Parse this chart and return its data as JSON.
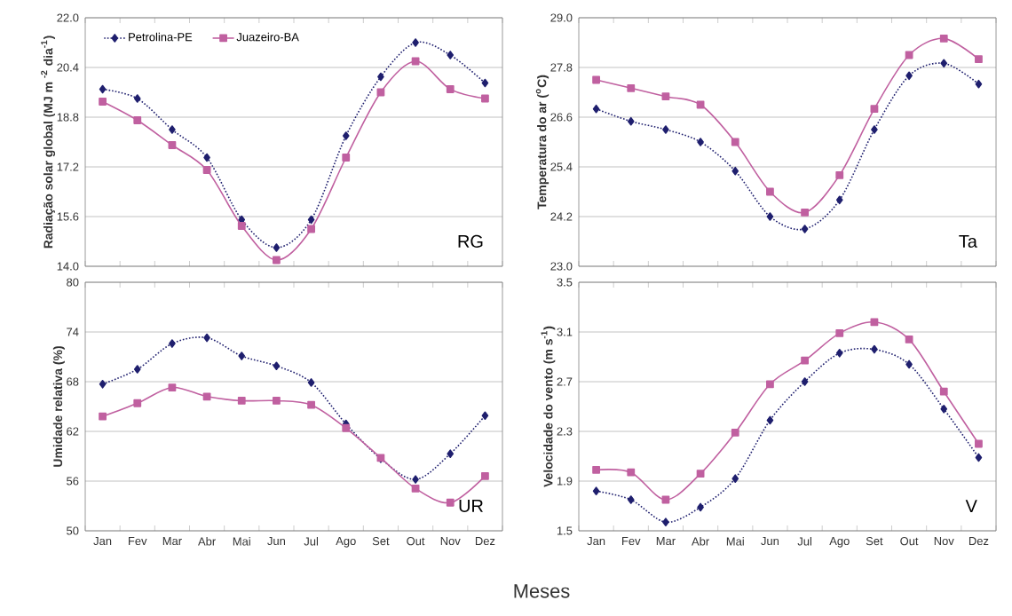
{
  "chart_data": [
    {
      "type": "line",
      "ylabel": "Radiação solar global (MJ m $^{-2}$ dia$^{-1}$)",
      "categories": [
        null,
        null,
        null,
        null,
        null,
        null,
        null,
        null,
        null,
        null,
        null,
        null
      ],
      "ylim": [
        14.0,
        22.0
      ],
      "yticks": [
        {
          "value": 14.0,
          "label": "14.0"
        },
        {
          "value": 15.6,
          "label": "15.6"
        },
        {
          "value": 17.2,
          "label": "17.2"
        },
        {
          "value": 18.8,
          "label": "18.8"
        },
        {
          "value": 20.4,
          "label": "20.4"
        },
        {
          "value": 22.0,
          "label": "22.0"
        }
      ],
      "grid": "y",
      "legend": "top left",
      "annotations": [
        "RG"
      ],
      "series": [
        {
          "name": "Petrolina-PE",
          "color": "#1f1f6e",
          "marker": "diamond",
          "line_style": "dotted",
          "values": [
            19.7,
            19.4,
            18.4,
            17.5,
            15.5,
            14.6,
            15.5,
            18.2,
            20.1,
            21.2,
            20.8,
            19.9
          ]
        },
        {
          "name": "Juazeiro-BA",
          "color": "#c060a0",
          "marker": "square",
          "line_style": "solid",
          "values": [
            19.3,
            18.7,
            17.9,
            17.1,
            15.3,
            14.2,
            15.2,
            17.5,
            19.6,
            20.6,
            19.7,
            19.4
          ]
        }
      ]
    },
    {
      "type": "line",
      "ylabel": "Temperatura do ar ($^{o}$C)",
      "categories": [
        null,
        null,
        null,
        null,
        null,
        null,
        null,
        null,
        null,
        null,
        null,
        null
      ],
      "ylim": [
        23.0,
        29.0
      ],
      "yticks": [
        {
          "value": 23.0,
          "label": "23.0"
        },
        {
          "value": 24.2,
          "label": "24.2"
        },
        {
          "value": 25.4,
          "label": "25.4"
        },
        {
          "value": 26.6,
          "label": "26.6"
        },
        {
          "value": 27.8,
          "label": "27.8"
        },
        {
          "value": 29.0,
          "label": "29.0"
        }
      ],
      "grid": "y",
      "annotations": [
        "Ta"
      ],
      "series": [
        {
          "color": "#1f1f6e",
          "marker": "diamond",
          "line_style": "dotted",
          "values": [
            26.8,
            26.5,
            26.3,
            26.0,
            25.3,
            24.2,
            23.9,
            24.6,
            26.3,
            27.6,
            27.9,
            27.4
          ]
        },
        {
          "color": "#c060a0",
          "marker": "square",
          "line_style": "solid",
          "values": [
            27.5,
            27.3,
            27.1,
            26.9,
            26.0,
            24.8,
            24.3,
            25.2,
            26.8,
            28.1,
            28.5,
            28.0
          ]
        }
      ]
    },
    {
      "type": "line",
      "ylabel": "Umidade relativa (%)",
      "xlabel": "Meses",
      "categories": [
        "Jan",
        "Fev",
        "Mar",
        "Abr",
        "Mai",
        "Jun",
        "Jul",
        "Ago",
        "Set",
        "Out",
        "Nov",
        "Dez"
      ],
      "ylim": [
        50,
        80
      ],
      "yticks": [
        50,
        56,
        62,
        68,
        74,
        80
      ],
      "grid": "y",
      "annotations": [
        "UR"
      ],
      "series": [
        {
          "color": "#1f1f6e",
          "marker": "diamond",
          "line_style": "dotted",
          "values": [
            67.7,
            69.5,
            72.6,
            73.3,
            71.1,
            69.9,
            67.9,
            62.9,
            58.7,
            56.2,
            59.3,
            63.9
          ]
        },
        {
          "color": "#c060a0",
          "marker": "square",
          "line_style": "solid",
          "values": [
            63.8,
            65.4,
            67.3,
            66.2,
            65.7,
            65.7,
            65.2,
            62.4,
            58.8,
            55.1,
            53.4,
            56.6
          ]
        }
      ]
    },
    {
      "type": "line",
      "ylabel": "Velocidade do vento (m s$^{-1}$)",
      "categories": [
        "Jan",
        "Fev",
        "Mar",
        "Abr",
        "Mai",
        "Jun",
        "Jul",
        "Ago",
        "Set",
        "Out",
        "Nov",
        "Dez"
      ],
      "ylim": [
        1.5,
        3.5
      ],
      "yticks": [
        1.5,
        1.9,
        2.3,
        2.7,
        3.1,
        3.5
      ],
      "grid": "y",
      "annotations": [
        "V"
      ],
      "series": [
        {
          "color": "#1f1f6e",
          "marker": "diamond",
          "line_style": "dotted",
          "values": [
            1.82,
            1.75,
            1.57,
            1.69,
            1.92,
            2.39,
            2.7,
            2.93,
            2.96,
            2.84,
            2.48,
            2.09
          ]
        },
        {
          "color": "#c060a0",
          "marker": "square",
          "line_style": "solid",
          "values": [
            1.99,
            1.97,
            1.75,
            1.96,
            2.29,
            2.68,
            2.87,
            3.09,
            3.18,
            3.04,
            2.62,
            2.2
          ]
        }
      ]
    }
  ]
}
